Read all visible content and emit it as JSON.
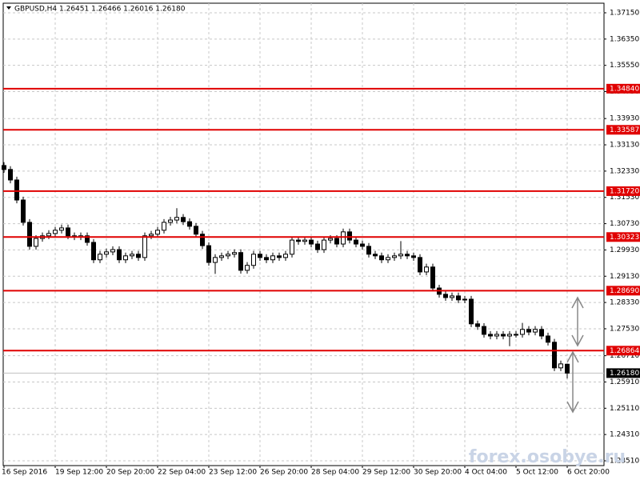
{
  "chart_data": {
    "type": "candlestick",
    "title": "GBPUSD,H4  1.26451 1.26466 1.26016 1.26180",
    "watermark": "forex.osobye.ru",
    "categories": [
      "16 Sep 2016",
      null,
      null,
      null,
      null,
      null,
      null,
      null,
      "19 Sep 12:00",
      null,
      null,
      null,
      null,
      null,
      null,
      null,
      "20 Sep 20:00",
      null,
      null,
      null,
      null,
      null,
      null,
      null,
      "22 Sep 04:00",
      null,
      null,
      null,
      null,
      null,
      null,
      null,
      "23 Sep 12:00",
      null,
      null,
      null,
      null,
      null,
      null,
      null,
      "26 Sep 20:00",
      null,
      null,
      null,
      null,
      null,
      null,
      null,
      "28 Sep 04:00",
      null,
      null,
      null,
      null,
      null,
      null,
      null,
      "29 Sep 12:00",
      null,
      null,
      null,
      null,
      null,
      null,
      null,
      "30 Sep 20:00",
      null,
      null,
      null,
      null,
      null,
      null,
      null,
      "4 Oct 04:00",
      null,
      null,
      null,
      null,
      null,
      null,
      null,
      "5 Oct 12:00",
      null,
      null,
      null,
      null,
      null,
      null,
      null,
      "6 Oct 20:00"
    ],
    "open": [
      1.325,
      1.3238,
      1.3206,
      1.3145,
      1.3077,
      1.3004,
      1.3028,
      1.3036,
      1.3043,
      1.3053,
      1.306,
      1.3036,
      1.3033,
      1.3036,
      1.3016,
      1.2963,
      1.298,
      1.2987,
      1.2994,
      1.2963,
      1.2975,
      1.298,
      1.297,
      1.3036,
      1.3041,
      1.3053,
      1.3077,
      1.3084,
      1.3092,
      1.3079,
      1.3065,
      1.3041,
      1.3006,
      1.2955,
      1.297,
      1.2975,
      1.298,
      1.2985,
      1.2931,
      1.2946,
      1.298,
      1.297,
      1.2963,
      1.2975,
      1.297,
      1.298,
      1.3023,
      1.3019,
      1.3023,
      1.3011,
      1.2994,
      1.3023,
      1.3028,
      1.3011,
      1.3048,
      1.3023,
      1.3011,
      1.3004,
      1.298,
      1.2975,
      1.2963,
      1.297,
      1.2975,
      1.298,
      1.2975,
      1.297,
      1.2926,
      1.2941,
      1.2877,
      1.2858,
      1.2848,
      1.2853,
      1.2841,
      1.2843,
      1.2768,
      1.276,
      1.2736,
      1.2731,
      1.2736,
      1.2731,
      1.2736,
      1.2736,
      1.2751,
      1.2743,
      1.2751,
      1.2731,
      1.2712,
      1.2634,
      1.26451
    ],
    "high": [
      1.326,
      1.3248,
      1.3216,
      1.3155,
      1.3087,
      1.3038,
      1.3046,
      1.3053,
      1.3063,
      1.307,
      1.307,
      1.3046,
      1.3046,
      1.3046,
      1.3026,
      1.299,
      1.2997,
      1.3004,
      1.3004,
      1.2985,
      1.299,
      1.299,
      1.3046,
      1.3051,
      1.3063,
      1.3087,
      1.3094,
      1.312,
      1.3102,
      1.3089,
      1.3075,
      1.3051,
      1.3016,
      1.298,
      1.2985,
      1.299,
      1.2995,
      1.2995,
      1.2956,
      1.299,
      1.299,
      1.298,
      1.2985,
      1.2985,
      1.299,
      1.3033,
      1.3033,
      1.3033,
      1.3033,
      1.3021,
      1.3033,
      1.3038,
      1.3038,
      1.3058,
      1.3058,
      1.3033,
      1.3021,
      1.3014,
      1.299,
      1.2985,
      1.298,
      1.2985,
      1.302,
      1.299,
      1.2985,
      1.298,
      1.2951,
      1.2951,
      1.2887,
      1.2868,
      1.2863,
      1.2863,
      1.2853,
      1.2853,
      1.2778,
      1.277,
      1.2746,
      1.2746,
      1.2746,
      1.2746,
      1.2746,
      1.2771,
      1.2761,
      1.2761,
      1.2761,
      1.2741,
      1.2722,
      1.2656,
      1.26466
    ],
    "low": [
      1.3228,
      1.3196,
      1.3135,
      1.3067,
      1.2994,
      1.2994,
      1.3018,
      1.3026,
      1.3033,
      1.3043,
      1.3026,
      1.3023,
      1.3023,
      1.3006,
      1.2953,
      1.2953,
      1.297,
      1.2977,
      1.2953,
      1.2953,
      1.2965,
      1.296,
      1.296,
      1.3026,
      1.3031,
      1.3043,
      1.3067,
      1.3074,
      1.3069,
      1.3055,
      1.3031,
      1.2996,
      1.2945,
      1.292,
      1.296,
      1.2965,
      1.297,
      1.2921,
      1.2921,
      1.2936,
      1.296,
      1.2953,
      1.2953,
      1.296,
      1.296,
      1.297,
      1.3009,
      1.3009,
      1.3001,
      1.2984,
      1.2984,
      1.3013,
      1.3001,
      1.3001,
      1.3013,
      1.3001,
      1.2994,
      1.297,
      1.2965,
      1.2953,
      1.2953,
      1.296,
      1.2965,
      1.2965,
      1.296,
      1.2916,
      1.2916,
      1.2867,
      1.2848,
      1.2838,
      1.2838,
      1.2831,
      1.2831,
      1.2758,
      1.275,
      1.2726,
      1.2721,
      1.2721,
      1.2721,
      1.27,
      1.2726,
      1.2726,
      1.2733,
      1.2733,
      1.2721,
      1.2702,
      1.2624,
      1.2624,
      1.26016
    ],
    "close": [
      1.3238,
      1.3206,
      1.3145,
      1.3077,
      1.3004,
      1.3028,
      1.3036,
      1.3043,
      1.3053,
      1.306,
      1.3036,
      1.3033,
      1.3036,
      1.3016,
      1.2963,
      1.298,
      1.2987,
      1.2994,
      1.2963,
      1.2975,
      1.298,
      1.297,
      1.3036,
      1.3041,
      1.3053,
      1.3077,
      1.3084,
      1.3092,
      1.3079,
      1.3065,
      1.3041,
      1.3006,
      1.2955,
      1.297,
      1.2975,
      1.298,
      1.2985,
      1.2931,
      1.2946,
      1.298,
      1.297,
      1.2963,
      1.2975,
      1.297,
      1.298,
      1.3023,
      1.3019,
      1.3023,
      1.3011,
      1.2994,
      1.3023,
      1.3028,
      1.3011,
      1.3048,
      1.3023,
      1.3011,
      1.3004,
      1.298,
      1.2975,
      1.2963,
      1.297,
      1.2975,
      1.298,
      1.2975,
      1.297,
      1.2926,
      1.2941,
      1.2877,
      1.2858,
      1.2848,
      1.2853,
      1.2841,
      1.2843,
      1.2768,
      1.276,
      1.2736,
      1.2731,
      1.2736,
      1.2731,
      1.2736,
      1.2736,
      1.2751,
      1.2743,
      1.2751,
      1.2731,
      1.2712,
      1.2634,
      1.2646,
      1.2618
    ],
    "up_color": "#ffffff",
    "down_color": "#000000",
    "ylim": [
      1.23364,
      1.37442
    ],
    "yticks": [
      {
        "value": 1.3715,
        "label": "1.37150"
      },
      {
        "value": 1.3635,
        "label": "1.36350"
      },
      {
        "value": 1.3555,
        "label": "1.35550"
      },
      {
        "value": 1.3475,
        "label": "1.34750"
      },
      {
        "value": 1.3393,
        "label": "1.33930"
      },
      {
        "value": 1.3313,
        "label": "1.33130"
      },
      {
        "value": 1.3233,
        "label": "1.32330"
      },
      {
        "value": 1.3153,
        "label": "1.31530"
      },
      {
        "value": 1.3073,
        "label": "1.30730"
      },
      {
        "value": 1.2993,
        "label": "1.29930"
      },
      {
        "value": 1.2913,
        "label": "1.29130"
      },
      {
        "value": 1.2833,
        "label": "1.28330"
      },
      {
        "value": 1.2753,
        "label": "1.27530"
      },
      {
        "value": 1.2671,
        "label": "1.26710"
      },
      {
        "value": 1.2591,
        "label": "1.25910"
      },
      {
        "value": 1.2511,
        "label": "1.25110"
      },
      {
        "value": 1.2431,
        "label": "1.24310"
      },
      {
        "value": 1.2351,
        "label": "1.23510"
      }
    ],
    "grid": true,
    "levels": [
      {
        "value": 1.3484,
        "label": "1.34840"
      },
      {
        "value": 1.33587,
        "label": "1.33587"
      },
      {
        "value": 1.3172,
        "label": "1.31720"
      },
      {
        "value": 1.30323,
        "label": "1.30323"
      },
      {
        "value": 1.2869,
        "label": "1.28690"
      },
      {
        "value": 1.26864,
        "label": "1.26864"
      }
    ],
    "level_color": "#e00000",
    "price_line": {
      "value": 1.2618,
      "label": "1.26180"
    }
  }
}
